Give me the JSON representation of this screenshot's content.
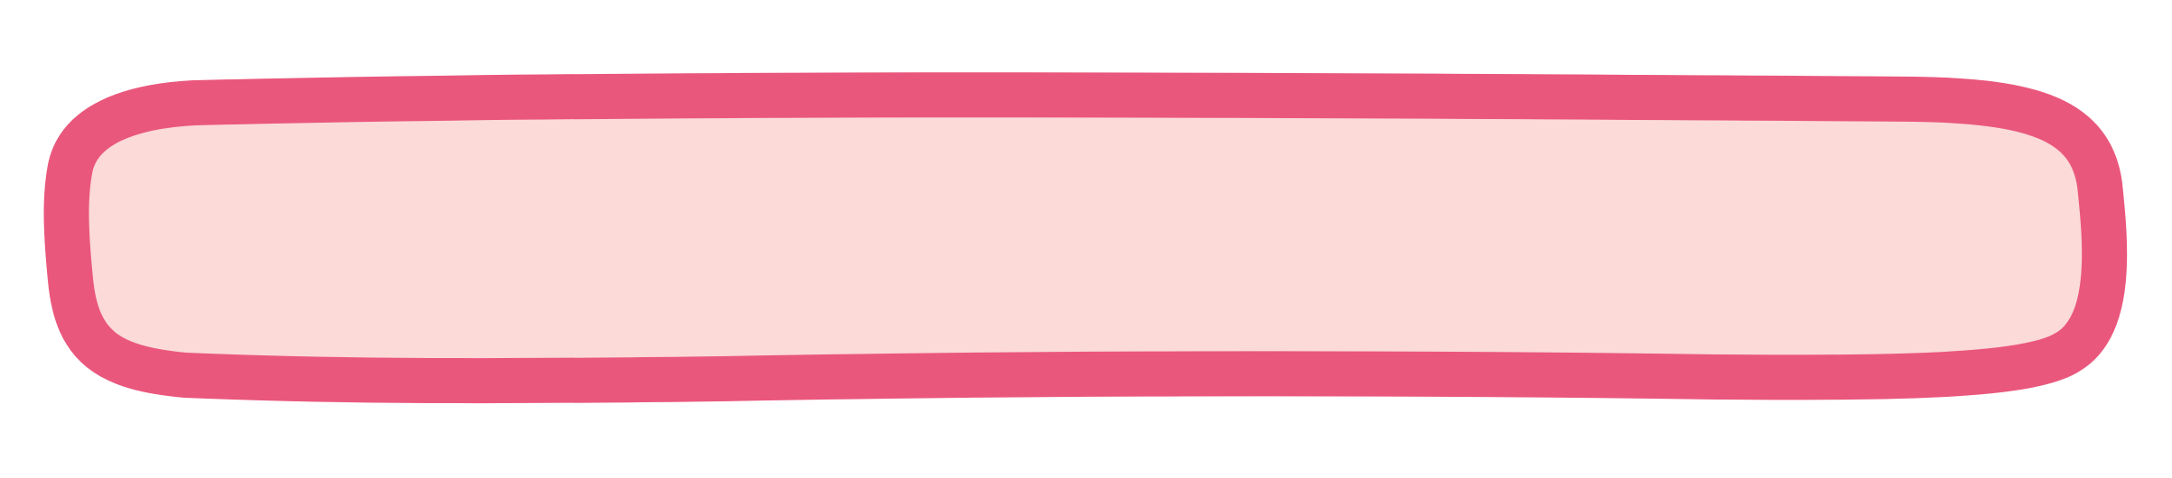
{
  "shape": {
    "kind": "hand-drawn-rounded-bar",
    "fill_color": "#FBDAD8",
    "stroke_color": "#EA577D",
    "background_color": "#FFFFFF"
  }
}
